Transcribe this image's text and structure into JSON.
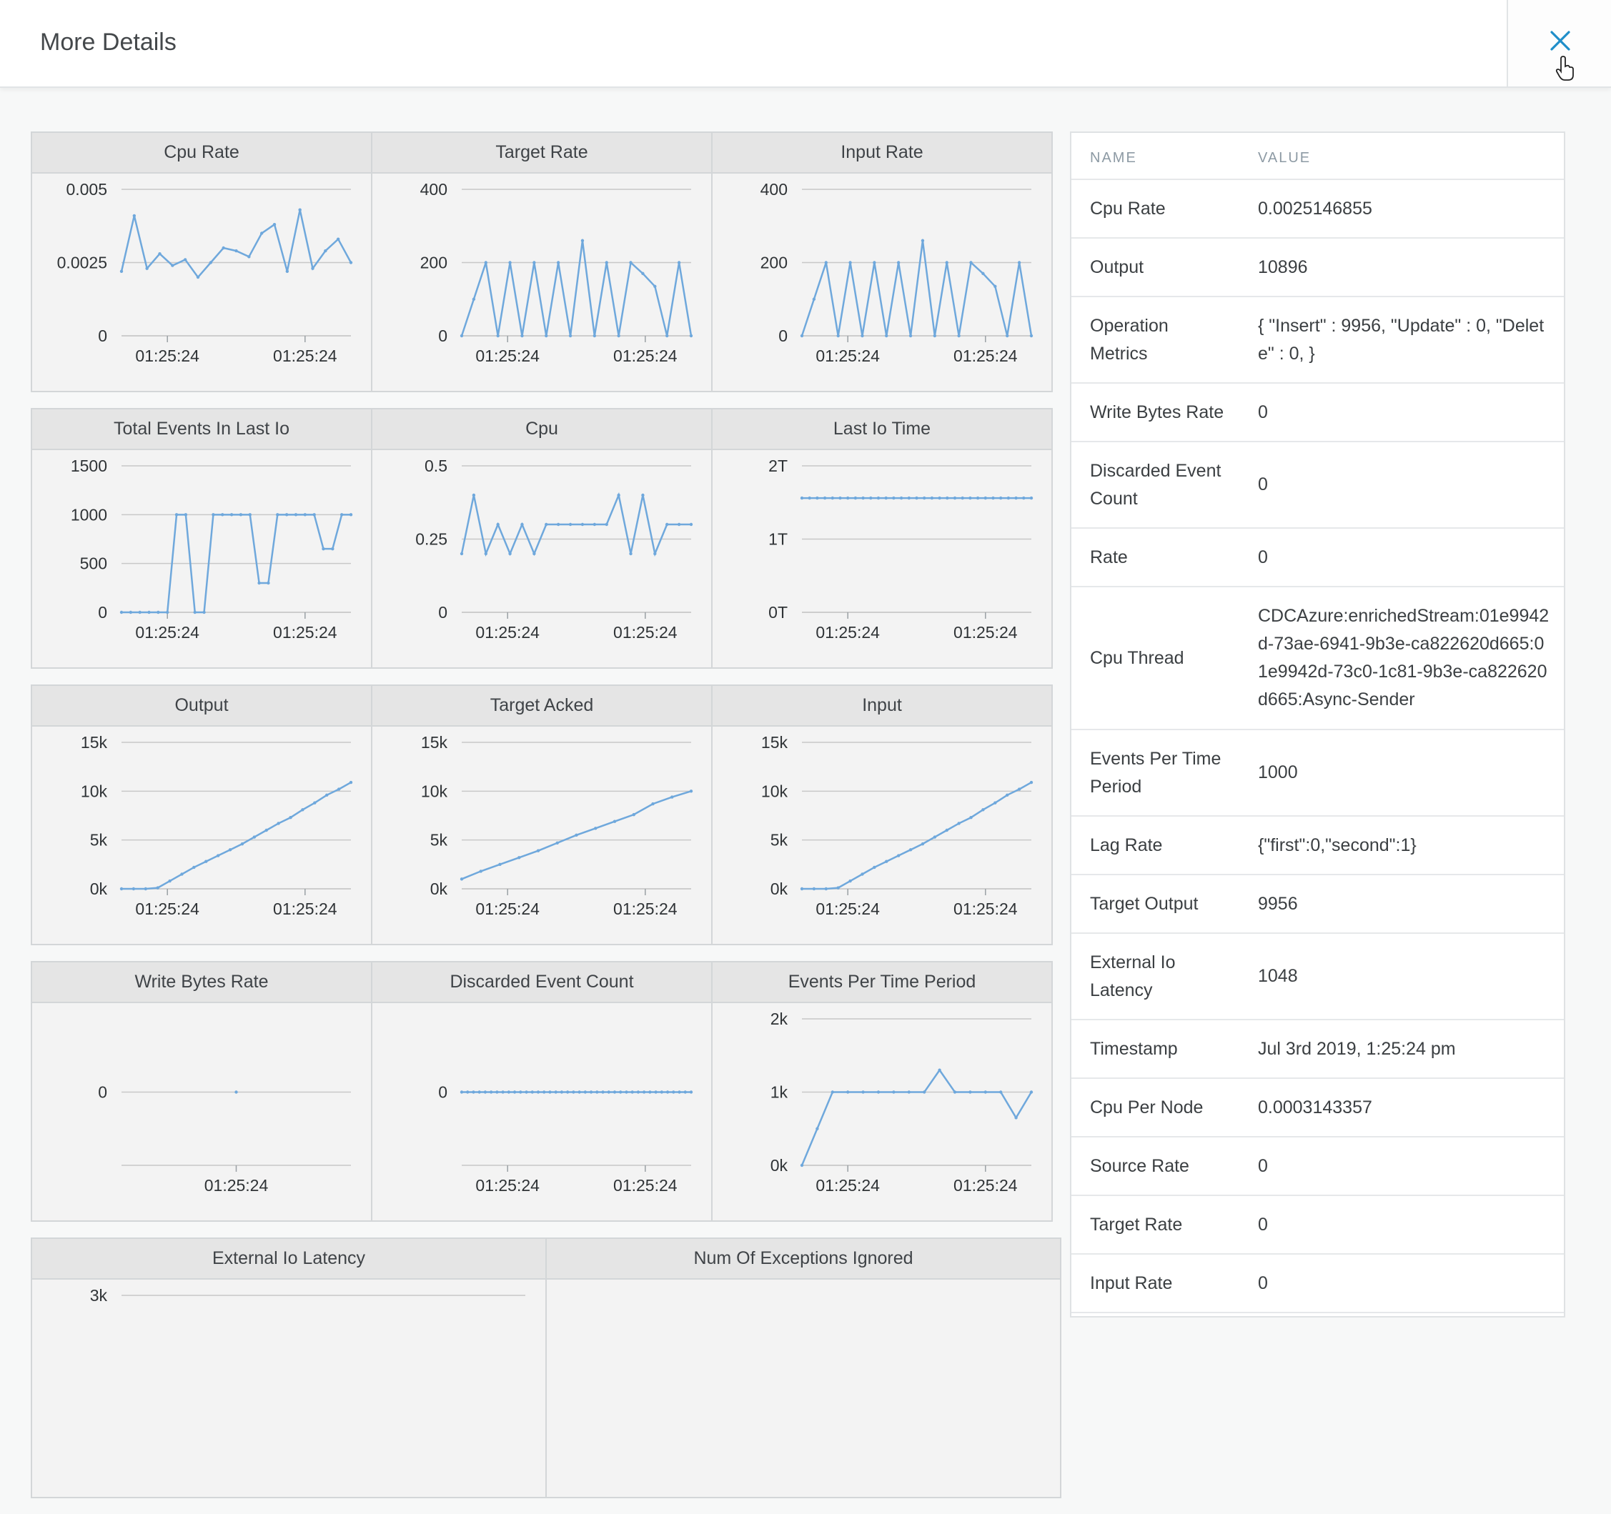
{
  "header": {
    "title": "More Details"
  },
  "table": {
    "headers": {
      "name": "NAME",
      "value": "VALUE"
    },
    "rows": [
      {
        "name": "Cpu Rate",
        "value": "0.0025146855"
      },
      {
        "name": "Output",
        "value": "10896"
      },
      {
        "name": "Operation Metrics",
        "value": "{ \"Insert\" : 9956, \"Update\" : 0, \"Delete\" : 0, }"
      },
      {
        "name": "Write Bytes Rate",
        "value": "0"
      },
      {
        "name": "Discarded Event Count",
        "value": "0"
      },
      {
        "name": "Rate",
        "value": "0"
      },
      {
        "name": "Cpu Thread",
        "value": "CDCAzure:enrichedStream:01e9942d-73ae-6941-9b3e-ca822620d665:01e9942d-73c0-1c81-9b3e-ca822620d665:Async-Sender"
      },
      {
        "name": "Events Per Time Period",
        "value": "1000"
      },
      {
        "name": "Lag Rate",
        "value": "{\"first\":0,\"second\":1}"
      },
      {
        "name": "Target Output",
        "value": "9956"
      },
      {
        "name": "External Io Latency",
        "value": "1048"
      },
      {
        "name": "Timestamp",
        "value": "Jul 3rd 2019, 1:25:24 pm"
      },
      {
        "name": "Cpu Per Node",
        "value": "0.0003143357"
      },
      {
        "name": "Source Rate",
        "value": "0"
      },
      {
        "name": "Target Rate",
        "value": "0"
      },
      {
        "name": "Input Rate",
        "value": "0"
      }
    ]
  },
  "chart_data": [
    {
      "title": "Cpu Rate",
      "type": "line",
      "yticks": [
        "0.005",
        "0.0025",
        "0"
      ],
      "ylim": [
        0,
        0.005
      ],
      "xticks": [
        "01:25:24",
        "01:25:24"
      ],
      "values": [
        0.0022,
        0.0041,
        0.0023,
        0.0028,
        0.0024,
        0.0026,
        0.002,
        0.0025,
        0.003,
        0.0029,
        0.0027,
        0.0035,
        0.0038,
        0.0022,
        0.0043,
        0.0023,
        0.0029,
        0.0033,
        0.0025
      ]
    },
    {
      "title": "Target Rate",
      "type": "line",
      "yticks": [
        "400",
        "200",
        "0"
      ],
      "ylim": [
        0,
        400
      ],
      "xticks": [
        "01:25:24",
        "01:25:24"
      ],
      "values": [
        0,
        100,
        200,
        0,
        200,
        0,
        200,
        0,
        200,
        0,
        260,
        0,
        200,
        0,
        200,
        170,
        135,
        0,
        200,
        0
      ]
    },
    {
      "title": "Input Rate",
      "type": "line",
      "yticks": [
        "400",
        "200",
        "0"
      ],
      "ylim": [
        0,
        400
      ],
      "xticks": [
        "01:25:24",
        "01:25:24"
      ],
      "values": [
        0,
        100,
        200,
        0,
        200,
        0,
        200,
        0,
        200,
        0,
        260,
        0,
        200,
        0,
        200,
        170,
        135,
        0,
        200,
        0
      ]
    },
    {
      "title": "Total Events In Last Io",
      "type": "line",
      "yticks": [
        "1500",
        "1000",
        "500",
        "0"
      ],
      "ylim": [
        0,
        1500
      ],
      "xticks": [
        "01:25:24",
        "01:25:24"
      ],
      "values": [
        0,
        0,
        0,
        0,
        0,
        0,
        1000,
        1000,
        0,
        0,
        1000,
        1000,
        1000,
        1000,
        1000,
        300,
        300,
        1000,
        1000,
        1000,
        1000,
        1000,
        650,
        650,
        1000,
        1000
      ]
    },
    {
      "title": "Cpu",
      "type": "line",
      "yticks": [
        "0.5",
        "0.25",
        "0"
      ],
      "ylim": [
        0,
        0.5
      ],
      "xticks": [
        "01:25:24",
        "01:25:24"
      ],
      "values": [
        0.2,
        0.4,
        0.2,
        0.3,
        0.2,
        0.3,
        0.2,
        0.3,
        0.3,
        0.3,
        0.3,
        0.3,
        0.3,
        0.4,
        0.2,
        0.4,
        0.2,
        0.3,
        0.3,
        0.3
      ]
    },
    {
      "title": "Last Io Time",
      "type": "line",
      "yticks": [
        "2T",
        "1T",
        "0T"
      ],
      "ylim": [
        0,
        2
      ],
      "xticks": [
        "01:25:24",
        "01:25:24"
      ],
      "values": [
        1.56,
        1.56,
        1.56,
        1.56,
        1.56,
        1.56,
        1.56,
        1.56,
        1.56,
        1.56,
        1.56,
        1.56,
        1.56,
        1.56,
        1.56,
        1.56,
        1.56,
        1.56,
        1.56,
        1.56,
        1.56,
        1.56,
        1.56,
        1.56,
        1.56,
        1.56,
        1.56,
        1.56,
        1.56,
        1.56,
        1.56
      ]
    },
    {
      "title": "Output",
      "type": "line",
      "yticks": [
        "15k",
        "10k",
        "5k",
        "0k"
      ],
      "ylim": [
        0,
        15000
      ],
      "xticks": [
        "01:25:24",
        "01:25:24"
      ],
      "values": [
        0,
        0,
        0,
        100,
        800,
        1500,
        2200,
        2800,
        3400,
        4000,
        4600,
        5300,
        6000,
        6700,
        7300,
        8100,
        8800,
        9600,
        10200,
        10900
      ]
    },
    {
      "title": "Target Acked",
      "type": "line",
      "yticks": [
        "15k",
        "10k",
        "5k",
        "0k"
      ],
      "ylim": [
        0,
        15000
      ],
      "xticks": [
        "01:25:24",
        "01:25:24"
      ],
      "values": [
        1000,
        1800,
        2500,
        3200,
        3900,
        4700,
        5500,
        6200,
        6900,
        7600,
        8700,
        9400,
        10000
      ]
    },
    {
      "title": "Input",
      "type": "line",
      "yticks": [
        "15k",
        "10k",
        "5k",
        "0k"
      ],
      "ylim": [
        0,
        15000
      ],
      "xticks": [
        "01:25:24",
        "01:25:24"
      ],
      "values": [
        0,
        0,
        0,
        100,
        800,
        1500,
        2200,
        2800,
        3400,
        4000,
        4600,
        5300,
        6000,
        6700,
        7300,
        8100,
        8800,
        9600,
        10200,
        10900
      ]
    },
    {
      "title": "Write Bytes Rate",
      "type": "line",
      "yticks": [
        "0"
      ],
      "ylim": [
        -1,
        1
      ],
      "xticks": [
        "01:25:24"
      ],
      "values": [
        0
      ]
    },
    {
      "title": "Discarded Event Count",
      "type": "line",
      "yticks": [
        "0"
      ],
      "ylim": [
        -1,
        1
      ],
      "xticks": [
        "01:25:24",
        "01:25:24"
      ],
      "values": [
        0,
        0,
        0,
        0,
        0,
        0,
        0,
        0,
        0,
        0,
        0,
        0,
        0,
        0,
        0,
        0,
        0,
        0,
        0,
        0,
        0,
        0,
        0,
        0,
        0,
        0,
        0,
        0,
        0,
        0,
        0,
        0,
        0,
        0,
        0,
        0,
        0,
        0,
        0,
        0
      ]
    },
    {
      "title": "Events Per Time Period",
      "type": "line",
      "yticks": [
        "2k",
        "1k",
        "0k"
      ],
      "ylim": [
        0,
        2000
      ],
      "xticks": [
        "01:25:24",
        "01:25:24"
      ],
      "values": [
        0,
        500,
        1000,
        1000,
        1000,
        1000,
        1000,
        1000,
        1000,
        1300,
        1000,
        1000,
        1000,
        1000,
        650,
        1000
      ]
    },
    {
      "title": "External Io Latency",
      "type": "line",
      "yticks": [
        "3k"
      ],
      "ylim": [
        0,
        3000
      ],
      "xticks": [],
      "values": []
    },
    {
      "title": "Num Of Exceptions Ignored",
      "type": "line",
      "yticks": [],
      "ylim": [
        0,
        1
      ],
      "xticks": [],
      "values": []
    }
  ]
}
